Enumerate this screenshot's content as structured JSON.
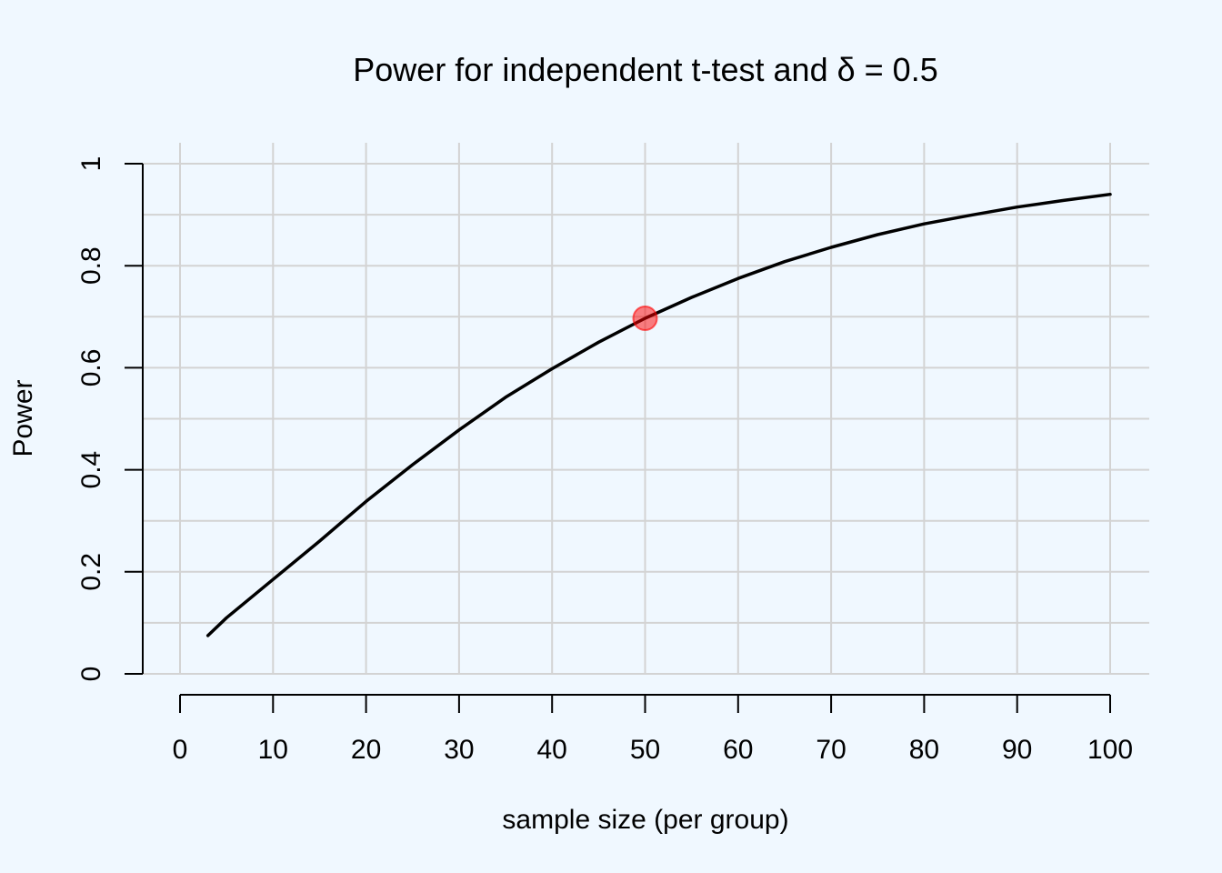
{
  "chart_data": {
    "type": "line",
    "title": "Power for independent t-test and δ = 0.5",
    "xlabel": "sample size (per group)",
    "ylabel": "Power",
    "xlim": [
      0,
      100
    ],
    "ylim": [
      0,
      1
    ],
    "x_ticks": [
      0,
      10,
      20,
      30,
      40,
      50,
      60,
      70,
      80,
      90,
      100
    ],
    "x_tick_labels": [
      "0",
      "10",
      "20",
      "30",
      "40",
      "50",
      "60",
      "70",
      "80",
      "90",
      "100"
    ],
    "y_ticks": [
      0,
      0.2,
      0.4,
      0.6,
      0.8,
      1
    ],
    "y_tick_labels": [
      "0",
      "0.2",
      "0.4",
      "0.6",
      "0.8",
      "1"
    ],
    "grid": true,
    "x_grid": [
      0,
      10,
      20,
      30,
      40,
      50,
      60,
      70,
      80,
      90,
      100
    ],
    "y_grid": [
      0,
      0.1,
      0.2,
      0.3,
      0.4,
      0.5,
      0.6,
      0.7,
      0.8,
      0.9,
      1
    ],
    "series": [
      {
        "color": "#000000",
        "x": [
          3,
          5,
          10,
          15,
          20,
          25,
          30,
          35,
          40,
          45,
          50,
          55,
          60,
          65,
          70,
          75,
          80,
          85,
          90,
          95,
          100
        ],
        "y": [
          0.075,
          0.11,
          0.185,
          0.26,
          0.338,
          0.41,
          0.478,
          0.542,
          0.598,
          0.65,
          0.697,
          0.738,
          0.775,
          0.808,
          0.836,
          0.861,
          0.882,
          0.899,
          0.915,
          0.928,
          0.94
        ]
      }
    ],
    "highlight_point": {
      "x": 50,
      "y": 0.697,
      "color": "#ff0000"
    }
  }
}
